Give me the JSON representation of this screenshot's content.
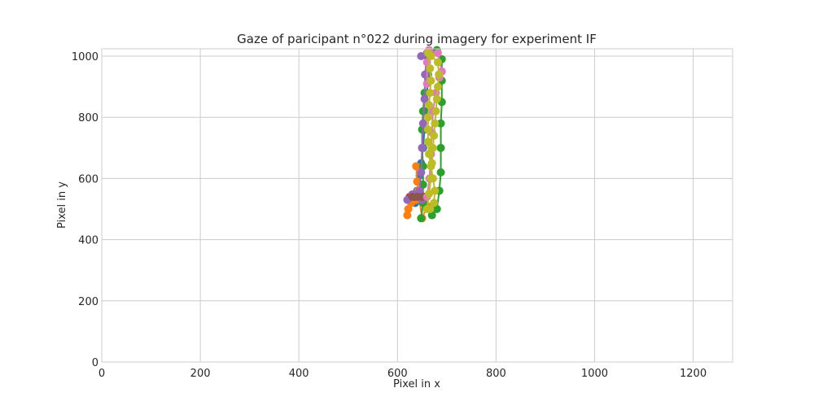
{
  "chart_data": {
    "type": "scatter",
    "title": "Gaze of paricipant n°022 during imagery for experiment IF",
    "xlabel": "Pixel in x",
    "ylabel": "Pixel in y",
    "xlim": [
      0,
      1280
    ],
    "ylim": [
      0,
      1024
    ],
    "xticks": [
      "0",
      "200",
      "400",
      "600",
      "800",
      "1000",
      "1200"
    ],
    "yticks": [
      "0",
      "200",
      "400",
      "600",
      "800",
      "1000"
    ],
    "grid": true,
    "legend": "none",
    "series": [
      {
        "color": "#1f77b4",
        "points": [
          [
            636,
            520
          ],
          [
            640,
            560
          ],
          [
            645,
            610
          ],
          [
            648,
            650
          ],
          [
            652,
            700
          ],
          [
            655,
            760
          ],
          [
            658,
            820
          ],
          [
            660,
            880
          ],
          [
            662,
            940
          ],
          [
            664,
            1000
          ]
        ]
      },
      {
        "color": "#ff7f0e",
        "points": [
          [
            620,
            480
          ],
          [
            622,
            500
          ],
          [
            628,
            520
          ],
          [
            638,
            530
          ],
          [
            648,
            545
          ],
          [
            655,
            530
          ],
          [
            660,
            510
          ],
          [
            650,
            470
          ],
          [
            642,
            560
          ],
          [
            640,
            590
          ],
          [
            638,
            640
          ]
        ]
      },
      {
        "color": "#2ca02c",
        "points": [
          [
            648,
            470
          ],
          [
            652,
            520
          ],
          [
            652,
            580
          ],
          [
            652,
            640
          ],
          [
            650,
            700
          ],
          [
            650,
            760
          ],
          [
            652,
            820
          ],
          [
            655,
            880
          ],
          [
            658,
            940
          ],
          [
            660,
            1000
          ],
          [
            680,
            1020
          ],
          [
            690,
            990
          ],
          [
            690,
            920
          ],
          [
            690,
            850
          ],
          [
            688,
            780
          ],
          [
            688,
            700
          ],
          [
            688,
            620
          ],
          [
            685,
            560
          ],
          [
            680,
            500
          ],
          [
            670,
            480
          ]
        ]
      },
      {
        "color": "#d62728",
        "points": [
          [
            625,
            540
          ],
          [
            635,
            540
          ],
          [
            645,
            540
          ],
          [
            655,
            540
          ]
        ]
      },
      {
        "color": "#9467bd",
        "points": [
          [
            620,
            530
          ],
          [
            630,
            548
          ],
          [
            640,
            550
          ],
          [
            650,
            530
          ],
          [
            645,
            560
          ],
          [
            648,
            620
          ],
          [
            650,
            700
          ],
          [
            652,
            780
          ],
          [
            655,
            860
          ],
          [
            656,
            940
          ],
          [
            660,
            1010
          ],
          [
            648,
            1000
          ]
        ]
      },
      {
        "color": "#8c564b",
        "points": [
          [
            630,
            540
          ],
          [
            640,
            540
          ],
          [
            650,
            540
          ]
        ]
      },
      {
        "color": "#e377c2",
        "points": [
          [
            660,
            540
          ],
          [
            665,
            600
          ],
          [
            668,
            680
          ],
          [
            670,
            750
          ],
          [
            672,
            820
          ],
          [
            678,
            880
          ],
          [
            685,
            930
          ],
          [
            690,
            950
          ],
          [
            682,
            1010
          ],
          [
            664,
            1020
          ],
          [
            660,
            980
          ],
          [
            660,
            910
          ]
        ]
      },
      {
        "color": "#bcbd22",
        "points": [
          [
            660,
            500
          ],
          [
            664,
            550
          ],
          [
            668,
            600
          ],
          [
            670,
            650
          ],
          [
            672,
            700
          ],
          [
            674,
            740
          ],
          [
            676,
            780
          ],
          [
            678,
            820
          ],
          [
            680,
            860
          ],
          [
            682,
            900
          ],
          [
            684,
            940
          ],
          [
            682,
            980
          ],
          [
            668,
            1000
          ],
          [
            662,
            1010
          ],
          [
            666,
            960
          ],
          [
            668,
            920
          ],
          [
            666,
            880
          ],
          [
            664,
            840
          ],
          [
            662,
            800
          ],
          [
            662,
            760
          ],
          [
            662,
            720
          ],
          [
            664,
            680
          ],
          [
            668,
            640
          ],
          [
            672,
            600
          ],
          [
            676,
            560
          ],
          [
            674,
            520
          ],
          [
            666,
            500
          ]
        ]
      }
    ]
  }
}
